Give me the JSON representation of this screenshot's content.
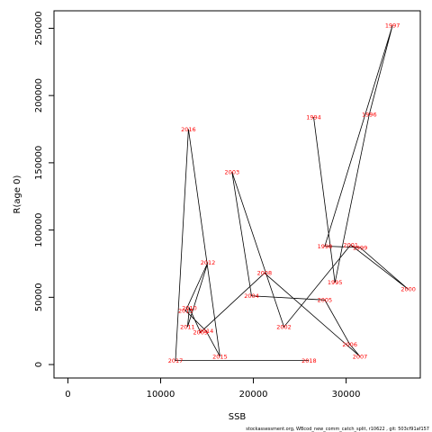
{
  "chart_data": {
    "type": "line",
    "xlabel": "SSB",
    "ylabel": "R(age 0)",
    "xlim": [
      -1500,
      38000
    ],
    "ylim": [
      -10000,
      263000
    ],
    "x_ticks": [
      0,
      10000,
      20000,
      30000
    ],
    "y_ticks": [
      0,
      50000,
      100000,
      150000,
      200000,
      250000
    ],
    "line_color": "#000000",
    "label_color": "#ff0000",
    "points": [
      {
        "label": "1994",
        "x": 26500,
        "y": 184000
      },
      {
        "label": "1995",
        "x": 28800,
        "y": 61000
      },
      {
        "label": "1996",
        "x": 32500,
        "y": 186000
      },
      {
        "label": "1997",
        "x": 35000,
        "y": 252000
      },
      {
        "label": "1998",
        "x": 27700,
        "y": 88000
      },
      {
        "label": "1999",
        "x": 31500,
        "y": 87000
      },
      {
        "label": "2000",
        "x": 36700,
        "y": 56000
      },
      {
        "label": "2001",
        "x": 30500,
        "y": 89000
      },
      {
        "label": "2002",
        "x": 23300,
        "y": 28000
      },
      {
        "label": "2003",
        "x": 17700,
        "y": 143000
      },
      {
        "label": "2004",
        "x": 19800,
        "y": 51000
      },
      {
        "label": "2005",
        "x": 27700,
        "y": 48000
      },
      {
        "label": "2006",
        "x": 30400,
        "y": 15000
      },
      {
        "label": "2007",
        "x": 31500,
        "y": 6000
      },
      {
        "label": "2008",
        "x": 21200,
        "y": 68000
      },
      {
        "label": "2009",
        "x": 14300,
        "y": 24000
      },
      {
        "label": "2010",
        "x": 13100,
        "y": 42000
      },
      {
        "label": "2011",
        "x": 12900,
        "y": 28000
      },
      {
        "label": "2012",
        "x": 15100,
        "y": 76000
      },
      {
        "label": "2013",
        "x": 12700,
        "y": 40000
      },
      {
        "label": "2014",
        "x": 14900,
        "y": 25000
      },
      {
        "label": "2015",
        "x": 16400,
        "y": 6000
      },
      {
        "label": "2016",
        "x": 13000,
        "y": 175000
      },
      {
        "label": "2017",
        "x": 11600,
        "y": 3000
      },
      {
        "label": "2018",
        "x": 26000,
        "y": 3000
      }
    ]
  },
  "footer": "stockassessment.org, WBcod_new_comm_catch_split, r10622 , git: 503cf91af157"
}
